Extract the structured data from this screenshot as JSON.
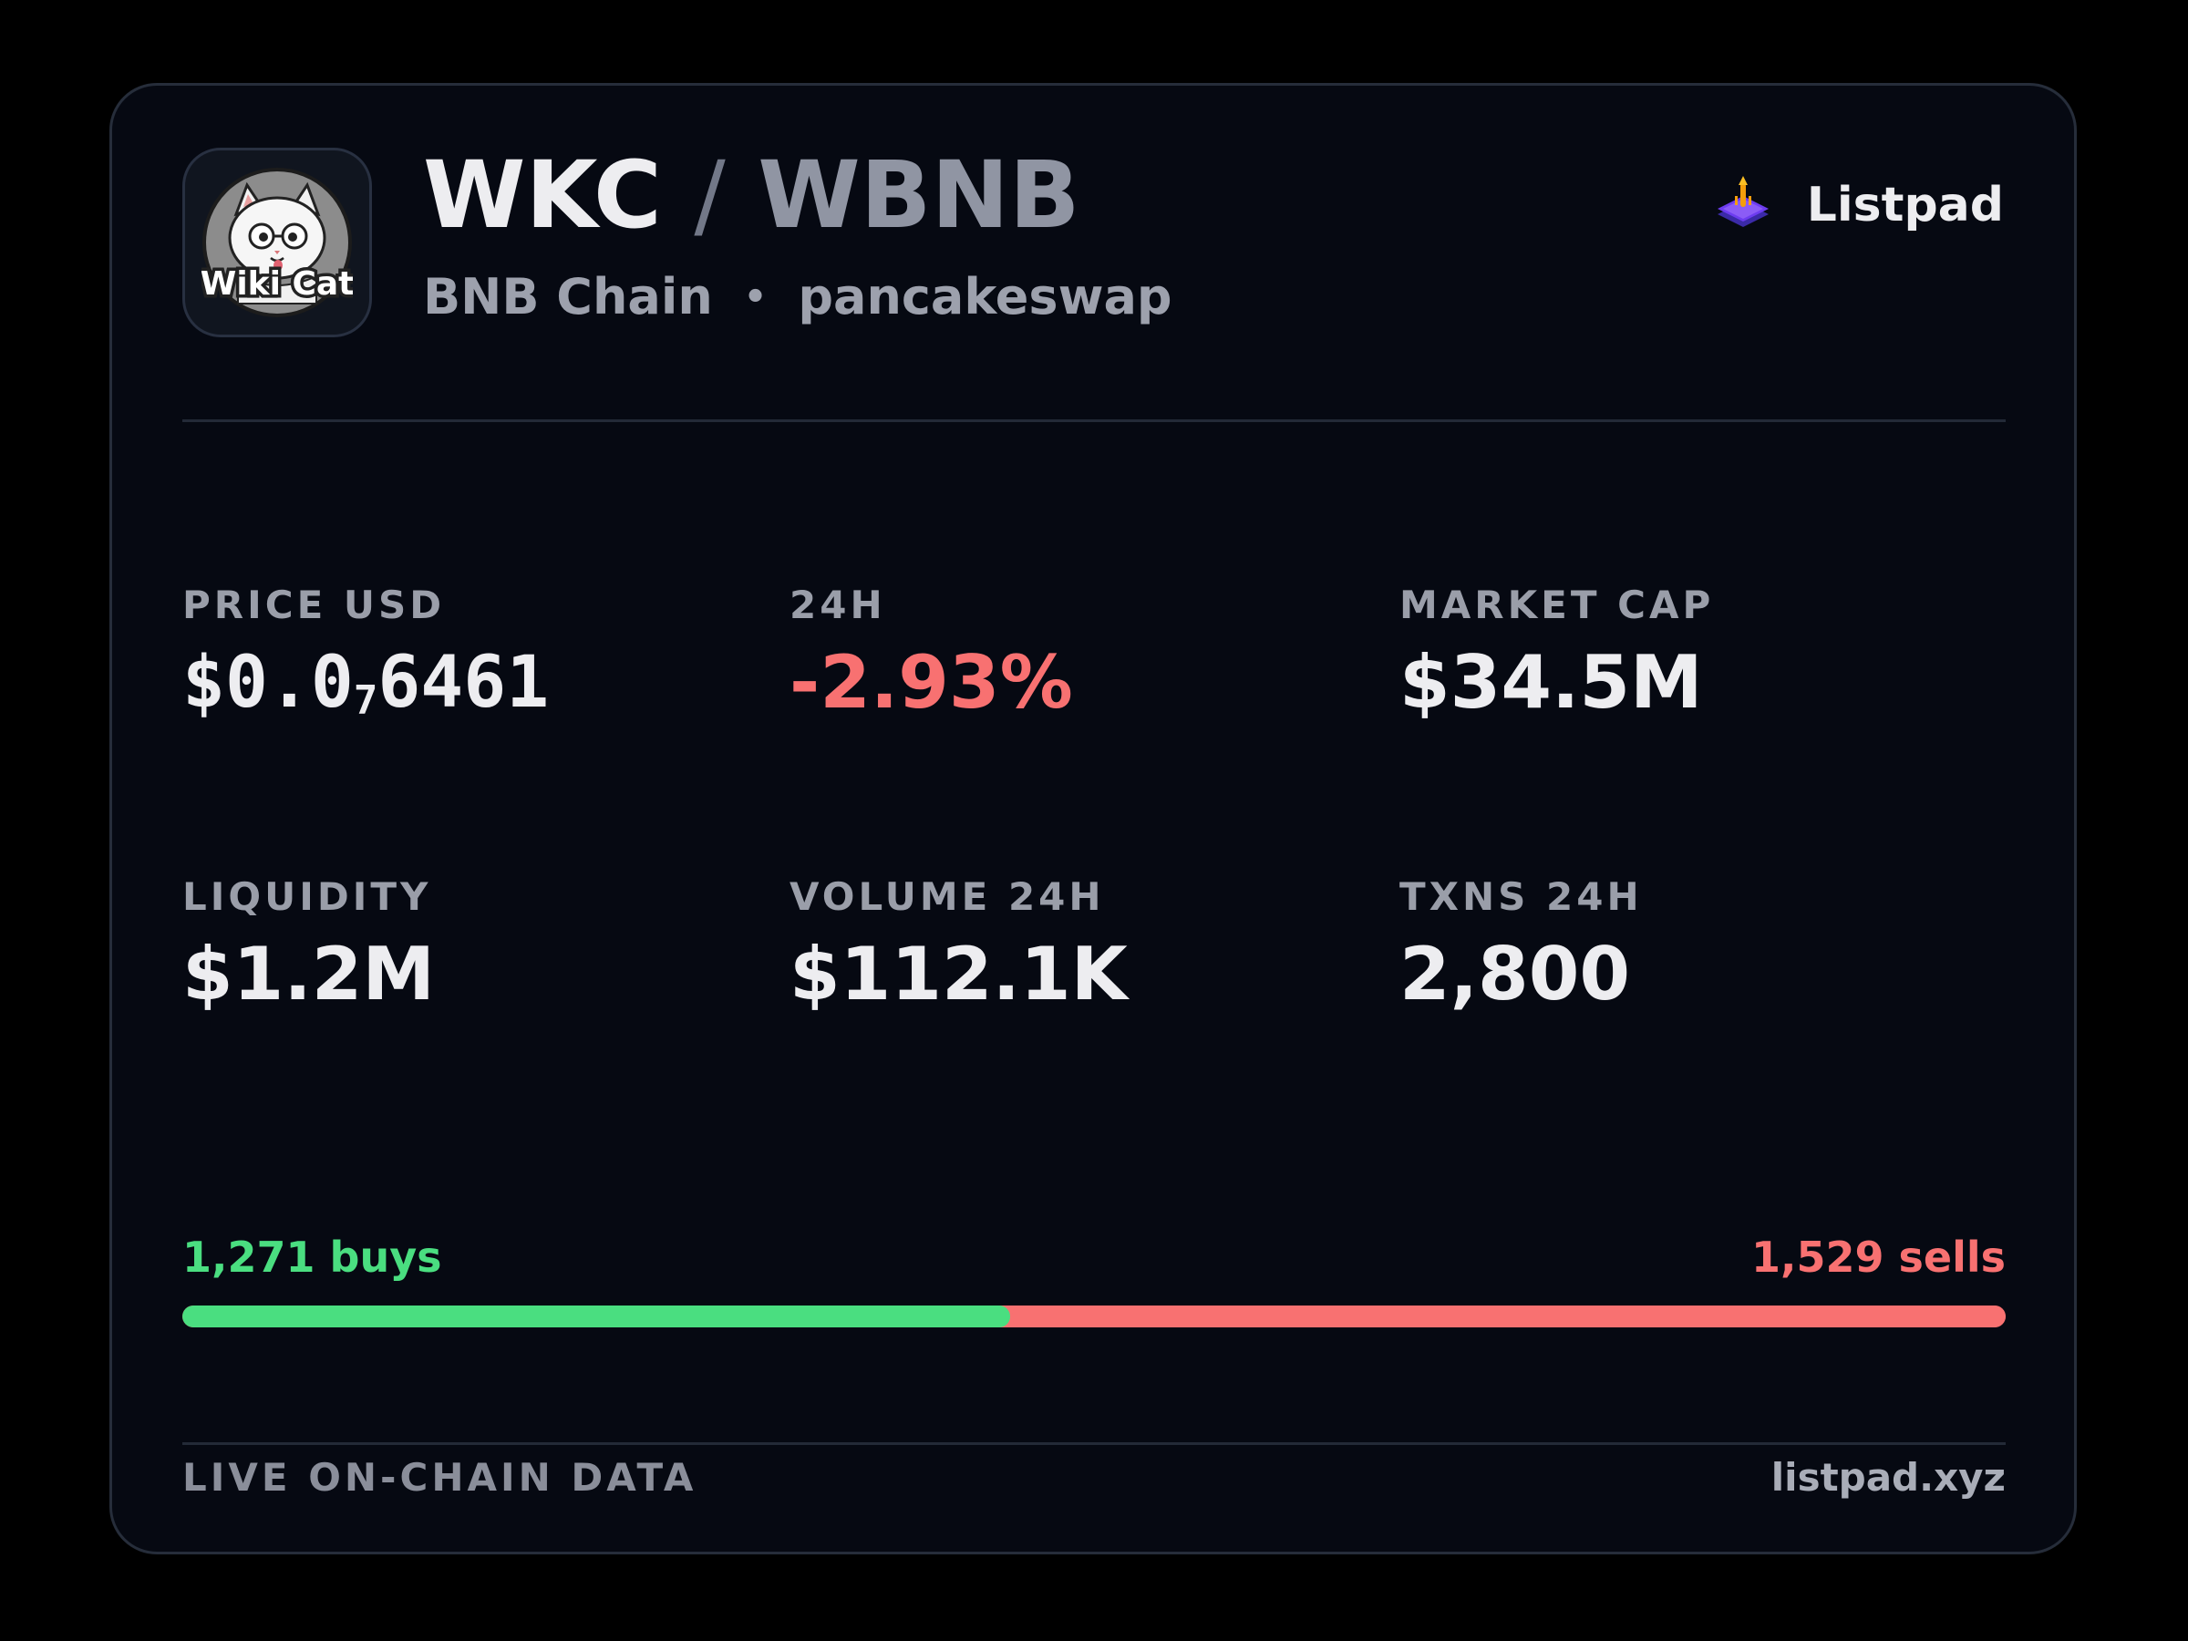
{
  "token": {
    "logo_text": "Wiki Cat",
    "base_symbol": "WKC",
    "separator": "/",
    "quote_symbol": "WBNB",
    "chain": "BNB Chain",
    "dot": "•",
    "dex": "pancakeswap"
  },
  "brand": {
    "icon": "listpad-rocket-icon",
    "name": "Listpad"
  },
  "stats": {
    "price": {
      "label": "PRICE USD",
      "prefix": "$0.0",
      "zeros": "7",
      "digits": "6461"
    },
    "change": {
      "label": "24H",
      "value": "-2.93%"
    },
    "market_cap": {
      "label": "MARKET CAP",
      "value": "$34.5M"
    },
    "liquidity": {
      "label": "LIQUIDITY",
      "value": "$1.2M"
    },
    "volume": {
      "label": "VOLUME 24H",
      "value": "$112.1K"
    },
    "txns": {
      "label": "TXNS 24H",
      "value": "2,800"
    }
  },
  "trades": {
    "buys_label": "1,271 buys",
    "sells_label": "1,529 sells",
    "buys": 1271,
    "sells": 1529
  },
  "footer": {
    "left": "LIVE ON-CHAIN DATA",
    "right": "listpad.xyz"
  },
  "colors": {
    "background": "#000000",
    "card": "#060912",
    "positive": "#4ade80",
    "negative": "#f87171",
    "text": "#ededf0",
    "muted": "#9a9ea9"
  }
}
